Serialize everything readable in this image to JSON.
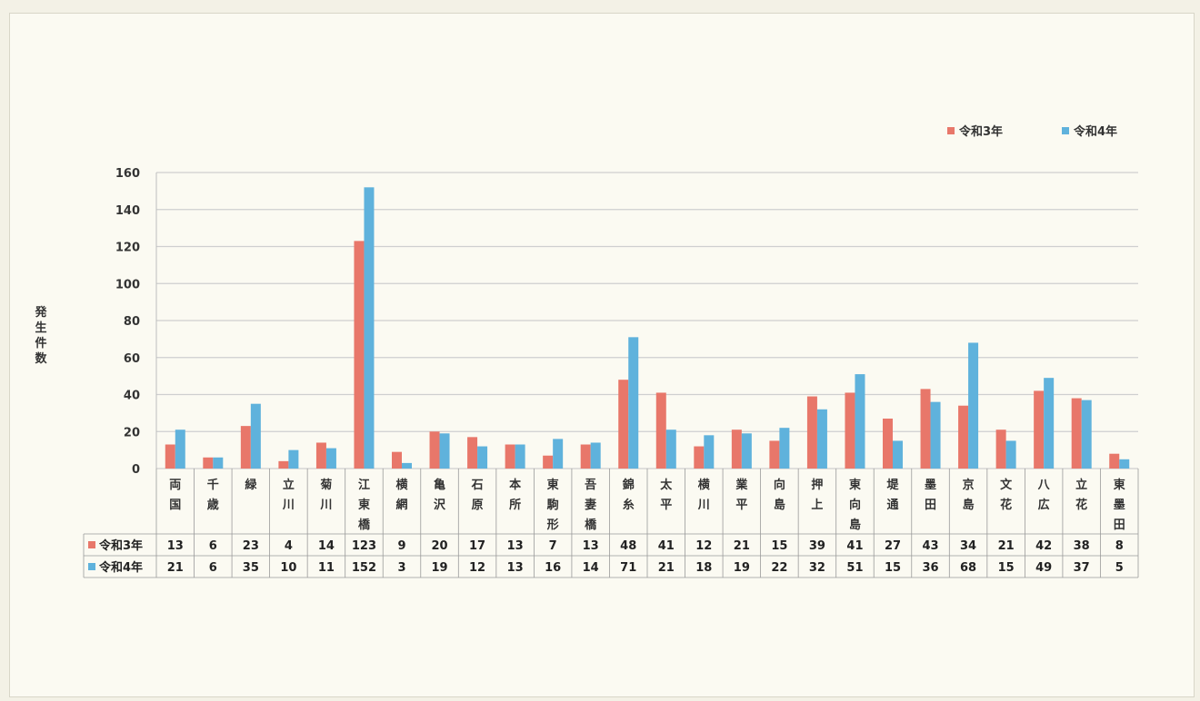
{
  "chart_data": {
    "type": "bar",
    "ylabel": "発生件数",
    "ylim": [
      0,
      160
    ],
    "yticks": [
      0,
      20,
      40,
      60,
      80,
      100,
      120,
      140,
      160
    ],
    "grid": true,
    "legend_position": "top-right",
    "categories": [
      "両国",
      "千歳",
      "緑",
      "立川",
      "菊川",
      "江東橋",
      "横網",
      "亀沢",
      "石原",
      "本所",
      "東駒形",
      "吾妻橋",
      "錦糸",
      "太平",
      "横川",
      "業平",
      "向島",
      "押上",
      "東向島",
      "堤通",
      "墨田",
      "京島",
      "文花",
      "八広",
      "立花",
      "東墨田"
    ],
    "series": [
      {
        "name": "令和3年",
        "color": "#e8776a",
        "values": [
          13,
          6,
          23,
          4,
          14,
          123,
          9,
          20,
          17,
          13,
          7,
          13,
          48,
          41,
          12,
          21,
          15,
          39,
          41,
          27,
          43,
          34,
          21,
          42,
          38,
          8
        ]
      },
      {
        "name": "令和4年",
        "color": "#5fb2dc",
        "values": [
          21,
          6,
          35,
          10,
          11,
          152,
          3,
          19,
          12,
          13,
          16,
          14,
          71,
          21,
          18,
          19,
          22,
          32,
          51,
          15,
          36,
          68,
          15,
          49,
          37,
          5
        ]
      }
    ]
  }
}
